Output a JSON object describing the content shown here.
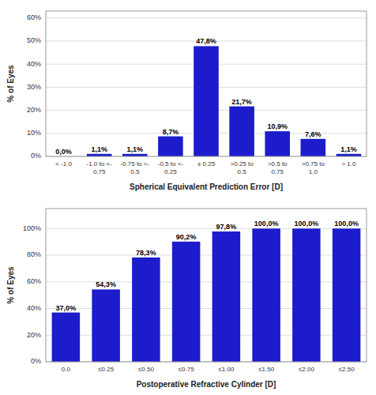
{
  "chart_data": [
    {
      "type": "bar",
      "categories": [
        "< -1.0",
        "-1.0 to <-\n0.75",
        "-0.75 to <-\n0.5",
        "-0.5 to <-\n0.25",
        "± 0.25",
        ">0.25 to\n0.5",
        ">0.5 to\n0.75",
        ">0.75 to\n1.0",
        "> 1.0"
      ],
      "values": [
        0.0,
        1.1,
        1.1,
        8.7,
        47.8,
        21.7,
        10.9,
        7.6,
        1.1
      ],
      "value_labels": [
        "0,0%",
        "1,1%",
        "1,1%",
        "8,7%",
        "47,8%",
        "21,7%",
        "10,9%",
        "7,6%",
        "1,1%"
      ],
      "data_labels": true,
      "xlabel": "Spherical Equivalent Prediction Error [D]",
      "ylabel": "% of Eyes",
      "ylim": [
        0,
        63
      ],
      "yticks": [
        {
          "value": 0,
          "label": "0%"
        },
        {
          "value": 10,
          "label": "10%"
        },
        {
          "value": 20,
          "label": "20%"
        },
        {
          "value": 30,
          "label": "30%"
        },
        {
          "value": 40,
          "label": "40%"
        },
        {
          "value": 50,
          "label": "50%"
        },
        {
          "value": 60,
          "label": "60%"
        }
      ],
      "grid": true,
      "color": "#1c1ccc"
    },
    {
      "type": "bar",
      "categories": [
        "0.0",
        "≤0.25",
        "≤0.50",
        "≤0.75",
        "≤1.00",
        "≤1.50",
        "≤2.00",
        "≤2.50"
      ],
      "values": [
        37.0,
        54.3,
        78.3,
        90.2,
        97.8,
        100.0,
        100.0,
        100.0
      ],
      "value_labels": [
        "37,0%",
        "54,3%",
        "78,3%",
        "90,2%",
        "97,8%",
        "100,0%",
        "100,0%",
        "100,0%"
      ],
      "data_labels": true,
      "xlabel": "Postoperative Refractive Cylinder [D]",
      "ylabel": "% of Eyes",
      "ylim": [
        0,
        115
      ],
      "yticks": [
        {
          "value": 0,
          "label": "0%"
        },
        {
          "value": 20,
          "label": "20%"
        },
        {
          "value": 40,
          "label": "40%"
        },
        {
          "value": 60,
          "label": "60%"
        },
        {
          "value": 80,
          "label": "80%"
        },
        {
          "value": 100,
          "label": "100%"
        }
      ],
      "grid": true,
      "color": "#1c1ccc"
    }
  ]
}
